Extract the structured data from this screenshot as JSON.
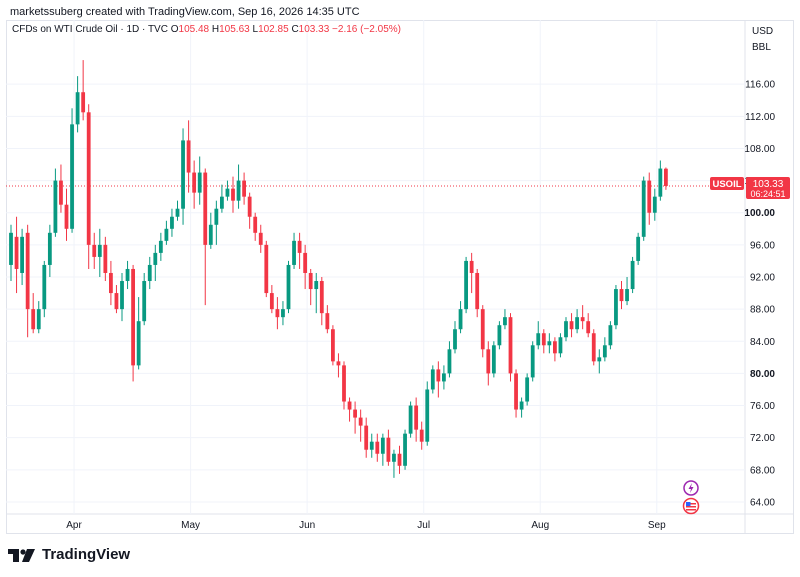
{
  "header": {
    "watermark": "marketssuberg created with TradingView.com, Sep 16, 2026 14:35 UTC",
    "symbol_title": "CFDs on WTI Crude Oil · 1D · TVC",
    "open_label": "O",
    "open_value": "105.48",
    "high_label": "H",
    "high_value": "105.63",
    "low_label": "L",
    "low_value": "102.85",
    "close_label": "C",
    "close_value": "103.33",
    "change_value": "−2.16 (−2.05%)"
  },
  "currency": {
    "unit": "USD",
    "sub_unit": "BBL"
  },
  "price_tag": {
    "symbol": "USOIL",
    "price": "103.33",
    "countdown": "06:24:51"
  },
  "footer": {
    "brand": "TradingView"
  },
  "colors": {
    "up": "#089981",
    "down": "#f23645",
    "grid": "#f0f3fa",
    "axis_text": "#131722"
  },
  "chart_data": {
    "type": "candlestick",
    "yticks": [
      "116.00",
      "112.00",
      "108.00",
      "104.00",
      "100.00",
      "96.00",
      "92.00",
      "88.00",
      "84.00",
      "80.00",
      "76.00",
      "72.00",
      "68.00",
      "64.00"
    ],
    "ylim": [
      62.5,
      121.5
    ],
    "xticks": [
      {
        "label": "Apr",
        "index": 11
      },
      {
        "label": "May",
        "index": 32
      },
      {
        "label": "Jun",
        "index": 53
      },
      {
        "label": "Jul",
        "index": 74
      },
      {
        "label": "Aug",
        "index": 95
      },
      {
        "label": "Sep",
        "index": 116
      }
    ],
    "highlight_price": 103.33,
    "candles": [
      [
        93.5,
        97.5,
        98.5,
        91.5
      ],
      [
        97.0,
        93.0,
        99.5,
        90.0
      ],
      [
        92.5,
        97.0,
        98.0,
        91.0
      ],
      [
        97.5,
        88.0,
        98.5,
        84.5
      ],
      [
        88.0,
        85.5,
        90.0,
        85.0
      ],
      [
        85.5,
        88.0,
        89.0,
        85.0
      ],
      [
        88.0,
        93.5,
        94.0,
        87.0
      ],
      [
        93.5,
        97.5,
        98.5,
        92.0
      ],
      [
        97.5,
        104.0,
        105.5,
        97.0
      ],
      [
        104.0,
        101.0,
        106.0,
        100.0
      ],
      [
        101.0,
        98.0,
        103.0,
        96.5
      ],
      [
        98.0,
        111.0,
        113.0,
        97.5
      ],
      [
        111.0,
        115.0,
        117.0,
        110.0
      ],
      [
        115.0,
        112.5,
        119.0,
        111.5
      ],
      [
        112.5,
        96.0,
        113.5,
        93.0
      ],
      [
        96.0,
        94.5,
        97.5,
        93.0
      ],
      [
        94.5,
        96.0,
        98.0,
        92.0
      ],
      [
        96.0,
        92.5,
        97.0,
        91.5
      ],
      [
        92.5,
        90.0,
        94.0,
        88.5
      ],
      [
        90.0,
        88.0,
        91.0,
        87.5
      ],
      [
        88.0,
        91.5,
        92.5,
        86.5
      ],
      [
        91.5,
        93.0,
        94.0,
        90.5
      ],
      [
        93.0,
        81.0,
        93.5,
        79.0
      ],
      [
        81.0,
        86.5,
        89.5,
        80.5
      ],
      [
        86.5,
        91.5,
        92.5,
        86.0
      ],
      [
        91.5,
        93.5,
        94.5,
        90.5
      ],
      [
        93.5,
        95.0,
        96.0,
        91.5
      ],
      [
        95.0,
        96.5,
        97.5,
        94.0
      ],
      [
        96.5,
        98.0,
        99.0,
        96.0
      ],
      [
        98.0,
        99.5,
        100.5,
        97.0
      ],
      [
        99.5,
        100.5,
        101.5,
        99.0
      ],
      [
        100.5,
        109.0,
        110.5,
        98.5
      ],
      [
        109.0,
        105.0,
        111.5,
        102.5
      ],
      [
        105.0,
        102.5,
        106.5,
        100.5
      ],
      [
        102.5,
        105.0,
        107.0,
        101.0
      ],
      [
        105.0,
        96.0,
        105.5,
        88.5
      ],
      [
        96.0,
        98.5,
        100.0,
        95.5
      ],
      [
        98.5,
        100.5,
        101.5,
        96.0
      ],
      [
        100.5,
        102.0,
        103.5,
        100.0
      ],
      [
        102.0,
        103.0,
        104.0,
        101.5
      ],
      [
        103.0,
        101.5,
        104.5,
        100.0
      ],
      [
        101.5,
        104.0,
        106.0,
        100.5
      ],
      [
        104.0,
        102.0,
        105.0,
        101.0
      ],
      [
        102.0,
        99.5,
        102.5,
        98.0
      ],
      [
        99.5,
        97.5,
        100.0,
        96.5
      ],
      [
        97.5,
        96.0,
        98.5,
        95.0
      ],
      [
        96.0,
        90.0,
        96.5,
        89.5
      ],
      [
        90.0,
        88.0,
        91.0,
        87.5
      ],
      [
        88.0,
        87.0,
        89.5,
        85.5
      ],
      [
        87.0,
        88.0,
        89.0,
        86.0
      ],
      [
        88.0,
        93.5,
        94.0,
        87.5
      ],
      [
        93.5,
        96.5,
        97.5,
        93.0
      ],
      [
        96.5,
        95.0,
        97.5,
        93.0
      ],
      [
        95.0,
        92.5,
        96.0,
        90.5
      ],
      [
        92.5,
        90.5,
        93.0,
        88.5
      ],
      [
        90.5,
        91.5,
        92.5,
        87.5
      ],
      [
        91.5,
        87.5,
        92.0,
        86.0
      ],
      [
        87.5,
        85.5,
        88.5,
        85.0
      ],
      [
        85.5,
        81.5,
        86.0,
        81.0
      ],
      [
        81.5,
        81.0,
        82.5,
        79.5
      ],
      [
        81.0,
        76.5,
        81.5,
        75.5
      ],
      [
        76.5,
        75.5,
        77.0,
        74.0
      ],
      [
        75.5,
        74.5,
        76.5,
        72.5
      ],
      [
        74.5,
        73.5,
        75.5,
        71.5
      ],
      [
        73.5,
        70.5,
        74.5,
        69.5
      ],
      [
        70.5,
        71.5,
        72.5,
        69.5
      ],
      [
        71.5,
        70.0,
        72.5,
        69.0
      ],
      [
        70.0,
        72.0,
        72.5,
        68.5
      ],
      [
        72.0,
        69.0,
        73.0,
        68.5
      ],
      [
        69.0,
        70.0,
        70.5,
        67.0
      ],
      [
        70.0,
        68.5,
        71.0,
        67.5
      ],
      [
        68.5,
        72.5,
        73.0,
        68.0
      ],
      [
        72.5,
        76.0,
        76.5,
        72.0
      ],
      [
        76.0,
        73.0,
        77.0,
        71.5
      ],
      [
        73.0,
        71.5,
        74.0,
        70.5
      ],
      [
        71.5,
        78.0,
        79.0,
        71.0
      ],
      [
        78.0,
        80.5,
        81.0,
        77.5
      ],
      [
        80.5,
        79.0,
        81.5,
        77.0
      ],
      [
        79.0,
        80.0,
        81.0,
        78.0
      ],
      [
        80.0,
        83.0,
        84.0,
        79.5
      ],
      [
        83.0,
        85.5,
        86.5,
        82.5
      ],
      [
        85.5,
        88.0,
        89.0,
        85.0
      ],
      [
        88.0,
        94.0,
        94.5,
        87.5
      ],
      [
        94.0,
        92.5,
        95.0,
        90.0
      ],
      [
        92.5,
        88.0,
        93.0,
        87.0
      ],
      [
        88.0,
        83.0,
        88.5,
        82.0
      ],
      [
        83.0,
        80.0,
        84.0,
        78.5
      ],
      [
        80.0,
        83.5,
        84.0,
        79.5
      ],
      [
        83.5,
        86.0,
        86.5,
        83.0
      ],
      [
        86.0,
        87.0,
        88.0,
        85.5
      ],
      [
        87.0,
        80.0,
        87.5,
        79.0
      ],
      [
        80.0,
        75.5,
        80.5,
        74.5
      ],
      [
        75.5,
        76.5,
        77.0,
        74.5
      ],
      [
        76.5,
        79.5,
        80.0,
        76.0
      ],
      [
        79.5,
        83.5,
        84.0,
        79.0
      ],
      [
        83.5,
        85.0,
        86.5,
        83.0
      ],
      [
        85.0,
        83.5,
        85.5,
        82.5
      ],
      [
        83.5,
        84.0,
        85.0,
        82.5
      ],
      [
        84.0,
        82.5,
        84.5,
        81.5
      ],
      [
        82.5,
        84.5,
        85.0,
        82.0
      ],
      [
        84.5,
        86.5,
        87.0,
        84.0
      ],
      [
        86.5,
        85.5,
        87.5,
        84.5
      ],
      [
        85.5,
        87.0,
        88.0,
        85.0
      ],
      [
        87.0,
        86.5,
        88.5,
        85.5
      ],
      [
        86.5,
        85.0,
        87.5,
        84.5
      ],
      [
        85.0,
        81.5,
        85.5,
        81.0
      ],
      [
        81.5,
        82.0,
        83.0,
        80.0
      ],
      [
        82.0,
        83.5,
        84.5,
        81.5
      ],
      [
        83.5,
        86.0,
        86.5,
        83.0
      ],
      [
        86.0,
        90.5,
        91.0,
        85.5
      ],
      [
        90.5,
        89.0,
        91.5,
        88.0
      ],
      [
        89.0,
        90.5,
        92.0,
        88.5
      ],
      [
        90.5,
        94.0,
        94.5,
        90.0
      ],
      [
        94.0,
        97.0,
        97.5,
        93.5
      ],
      [
        97.0,
        104.0,
        104.5,
        96.5
      ],
      [
        104.0,
        100.0,
        105.0,
        98.5
      ],
      [
        100.0,
        102.0,
        103.0,
        99.0
      ],
      [
        102.0,
        105.5,
        106.5,
        101.5
      ],
      [
        105.48,
        103.33,
        105.63,
        102.85
      ]
    ]
  }
}
